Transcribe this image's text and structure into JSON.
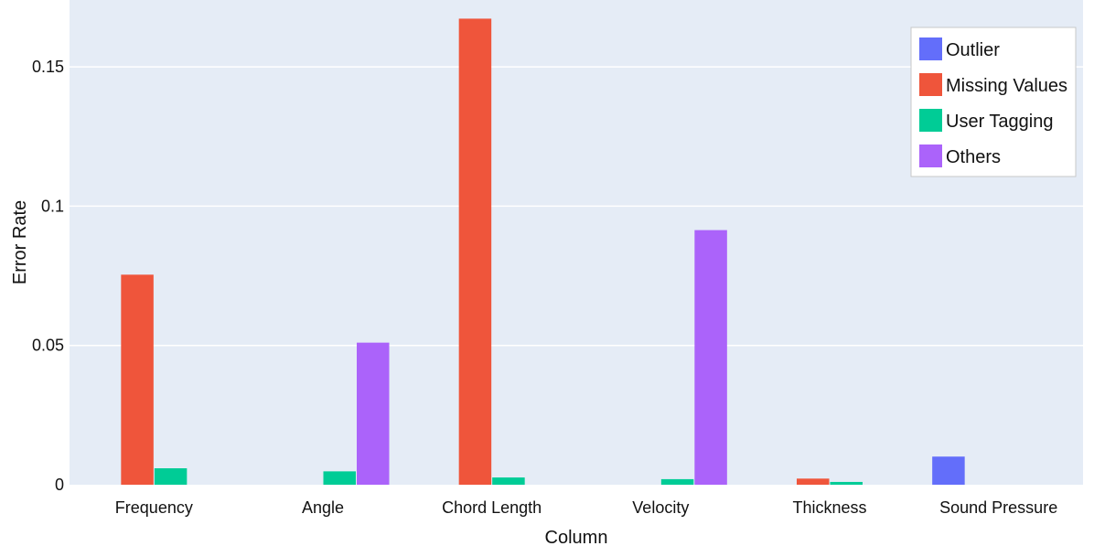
{
  "chart_data": {
    "type": "bar",
    "title": "",
    "xlabel": "Column",
    "ylabel": "Error Rate",
    "ylim": [
      0,
      0.174
    ],
    "yticks": [
      0,
      0.05,
      0.1,
      0.15
    ],
    "ytick_labels": [
      "0",
      "0.05",
      "0.1",
      "0.15"
    ],
    "grid": true,
    "legend_position": "top-right",
    "categories": [
      "Frequency",
      "Angle",
      "Chord Length",
      "Velocity",
      "Thickness",
      "Sound Pressure"
    ],
    "series": [
      {
        "name": "Outlier",
        "color": "#636efa",
        "values": [
          0,
          0,
          0,
          0,
          0,
          0.0101
        ]
      },
      {
        "name": "Missing Values",
        "color": "#ef553b",
        "values": [
          0.0754,
          0,
          0.1673,
          0,
          0.0022,
          0
        ]
      },
      {
        "name": "User Tagging",
        "color": "#00cc96",
        "values": [
          0.0059,
          0.0048,
          0.0026,
          0.002,
          0.001,
          0
        ]
      },
      {
        "name": "Others",
        "color": "#ab63fa",
        "values": [
          0,
          0.051,
          0,
          0.0914,
          0,
          0
        ]
      }
    ],
    "plot_background": "#e5ecf6"
  }
}
